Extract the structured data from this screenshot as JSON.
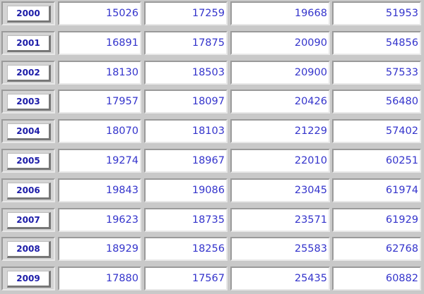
{
  "table": {
    "rows": [
      {
        "year": "2000",
        "values": [
          "15026",
          "17259",
          "19668",
          "51953"
        ]
      },
      {
        "year": "2001",
        "values": [
          "16891",
          "17875",
          "20090",
          "54856"
        ]
      },
      {
        "year": "2002",
        "values": [
          "18130",
          "18503",
          "20900",
          "57533"
        ]
      },
      {
        "year": "2003",
        "values": [
          "17957",
          "18097",
          "20426",
          "56480"
        ]
      },
      {
        "year": "2004",
        "values": [
          "18070",
          "18103",
          "21229",
          "57402"
        ]
      },
      {
        "year": "2005",
        "values": [
          "19274",
          "18967",
          "22010",
          "60251"
        ]
      },
      {
        "year": "2006",
        "values": [
          "19843",
          "19086",
          "23045",
          "61974"
        ]
      },
      {
        "year": "2007",
        "values": [
          "19623",
          "18735",
          "23571",
          "61929"
        ]
      },
      {
        "year": "2008",
        "values": [
          "18929",
          "18256",
          "25583",
          "62768"
        ]
      },
      {
        "year": "2009",
        "values": [
          "17880",
          "17567",
          "25435",
          "60882"
        ]
      }
    ]
  },
  "colors": {
    "value_text": "#3434cc",
    "year_text": "#1c1ca8",
    "background": "#c9c9c9"
  }
}
